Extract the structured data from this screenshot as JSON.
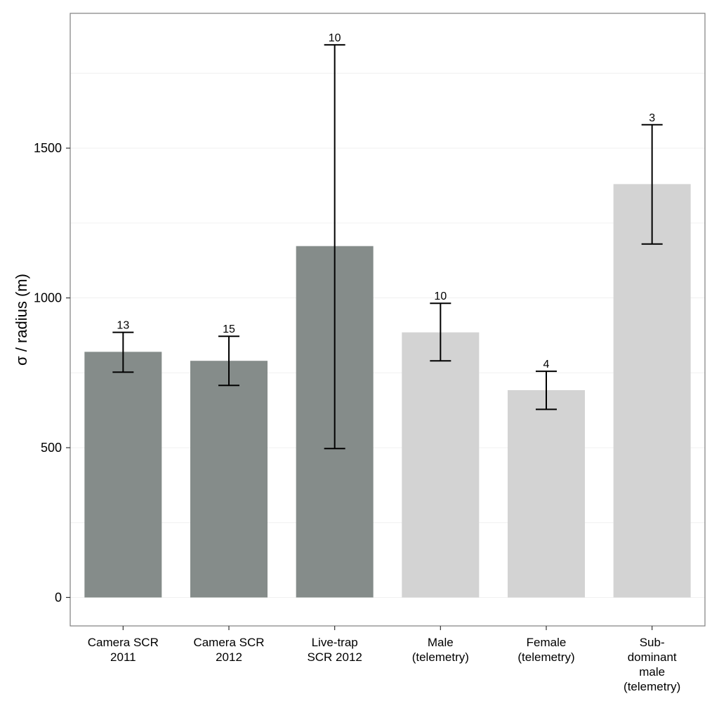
{
  "chart_data": {
    "type": "bar",
    "title": "",
    "xlabel": "",
    "ylabel": "σ / radius (m)",
    "ylim": [
      -95,
      1950
    ],
    "yticks": [
      0,
      500,
      1000,
      1500
    ],
    "ytick_labels": [
      "0",
      "500",
      "1000",
      "1500"
    ],
    "grid": true,
    "categories": [
      [
        "Camera SCR",
        "2011"
      ],
      [
        "Camera SCR",
        "2012"
      ],
      [
        "Live-trap",
        "SCR 2012"
      ],
      [
        "Male",
        "(telemetry)"
      ],
      [
        "Female",
        "(telemetry)"
      ],
      [
        "Sub-",
        "dominant",
        "male",
        "(telemetry)"
      ]
    ],
    "values": [
      820,
      790,
      1173,
      885,
      692,
      1380
    ],
    "error_low": [
      752,
      708,
      497,
      790,
      628,
      1180
    ],
    "error_high": [
      885,
      872,
      1845,
      982,
      755,
      1578
    ],
    "n_labels": [
      "13",
      "15",
      "10",
      "10",
      "4",
      "3"
    ],
    "bar_groups": [
      "dark",
      "dark",
      "dark",
      "light",
      "light",
      "light"
    ],
    "colors": {
      "dark": "#858c8a",
      "light": "#d3d3d3",
      "error": "#000000",
      "frame": "#7f7f7f",
      "grid": "#f0f0f0"
    }
  }
}
